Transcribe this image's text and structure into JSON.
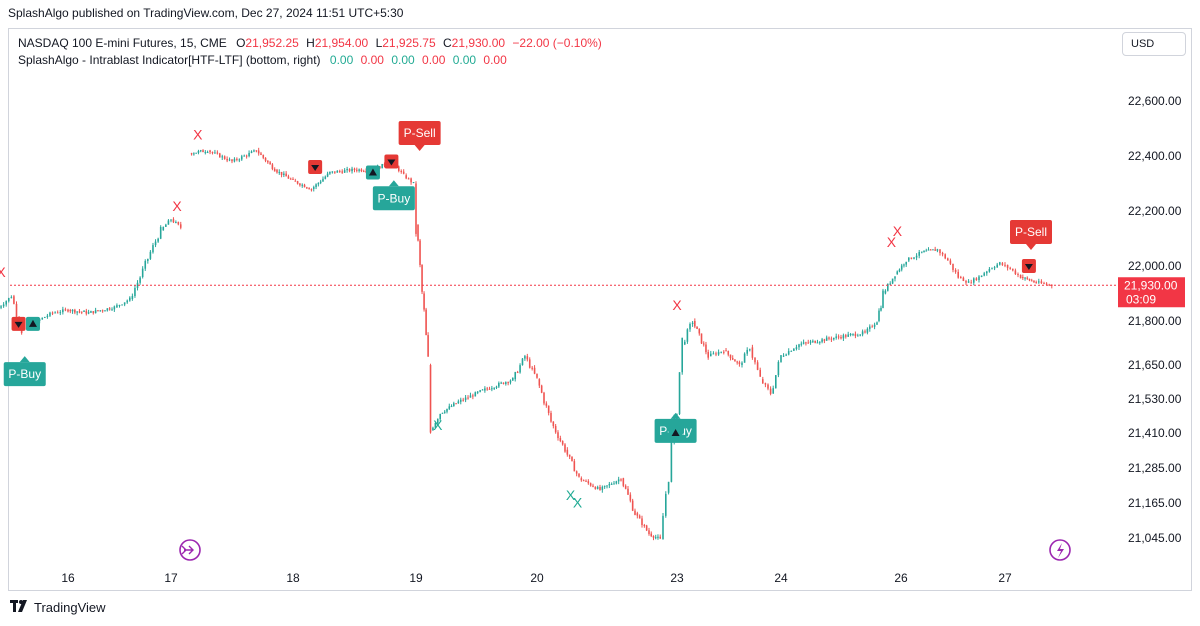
{
  "publisher_line": "SplashAlgo published on TradingView.com, Dec 27, 2024 11:51 UTC+5:30",
  "legend": {
    "symbol": "NASDAQ 100 E-mini Futures, 15, CME",
    "o_label": "O",
    "o_value": "21,952.25",
    "h_label": "H",
    "h_value": "21,954.00",
    "l_label": "L",
    "l_value": "21,925.75",
    "c_label": "C",
    "c_value": "21,930.00",
    "change": "−22.00 (−0.10%)",
    "indicator": "SplashAlgo - Intrablast Indicator[HTF-LTF] (bottom, right)",
    "indicator_values": [
      "0.00",
      "0.00",
      "0.00",
      "0.00",
      "0.00",
      "0.00"
    ]
  },
  "currency_button": "USD",
  "price_tag": {
    "price": "21,930.00",
    "countdown": "03:09"
  },
  "footer": {
    "brand": "TradingView"
  },
  "colors": {
    "up": "#26a69a",
    "down": "#ef5350",
    "sell": "#e53935",
    "buy": "#26a69a",
    "x_red": "#f23645",
    "x_green": "#22ab94"
  },
  "chart_data": {
    "type": "candlestick",
    "y_ticks": [
      {
        "label": "22,600.00",
        "value": 22600
      },
      {
        "label": "22,400.00",
        "value": 22400
      },
      {
        "label": "22,200.00",
        "value": 22200
      },
      {
        "label": "22,000.00",
        "value": 22000
      },
      {
        "label": "21,800.00",
        "value": 21800
      },
      {
        "label": "21,650.00",
        "value": 21650
      },
      {
        "label": "21,530.00",
        "value": 21530
      },
      {
        "label": "21,410.00",
        "value": 21410
      },
      {
        "label": "21,285.00",
        "value": 21285
      },
      {
        "label": "21,165.00",
        "value": 21165
      },
      {
        "label": "21,045.00",
        "value": 21045
      }
    ],
    "x_ticks": [
      {
        "label": "16",
        "t": 16
      },
      {
        "label": "17",
        "t": 17
      },
      {
        "label": "18",
        "t": 18
      },
      {
        "label": "19",
        "t": 19
      },
      {
        "label": "20",
        "t": 20
      },
      {
        "label": "23",
        "t": 21
      },
      {
        "label": "24",
        "t": 22
      },
      {
        "label": "26",
        "t": 23
      },
      {
        "label": "27",
        "t": 24
      }
    ],
    "last_price": 21930,
    "price_path": [
      [
        15.3,
        21840
      ],
      [
        15.45,
        21890
      ],
      [
        15.55,
        21770
      ],
      [
        15.7,
        21800
      ],
      [
        15.85,
        21830
      ],
      [
        16.0,
        21840
      ],
      [
        16.2,
        21830
      ],
      [
        16.45,
        21850
      ],
      [
        16.6,
        21880
      ],
      [
        16.7,
        21960
      ],
      [
        16.8,
        22050
      ],
      [
        16.9,
        22130
      ],
      [
        17.0,
        22170
      ],
      [
        17.08,
        22140
      ],
      [
        17.15,
        22410
      ],
      [
        17.3,
        22420
      ],
      [
        17.5,
        22380
      ],
      [
        17.7,
        22420
      ],
      [
        17.85,
        22350
      ],
      [
        18.0,
        22310
      ],
      [
        18.15,
        22280
      ],
      [
        18.3,
        22340
      ],
      [
        18.5,
        22350
      ],
      [
        18.65,
        22350
      ],
      [
        18.8,
        22380
      ],
      [
        18.9,
        22330
      ],
      [
        18.98,
        22300
      ],
      [
        19.0,
        22150
      ],
      [
        19.05,
        21900
      ],
      [
        19.1,
        21650
      ],
      [
        19.12,
        21420
      ],
      [
        19.2,
        21480
      ],
      [
        19.35,
        21520
      ],
      [
        19.55,
        21560
      ],
      [
        19.8,
        21600
      ],
      [
        19.9,
        21680
      ],
      [
        20.0,
        21600
      ],
      [
        20.1,
        21450
      ],
      [
        20.2,
        21350
      ],
      [
        20.3,
        21250
      ],
      [
        20.45,
        21210
      ],
      [
        20.6,
        21250
      ],
      [
        20.7,
        21130
      ],
      [
        20.8,
        21060
      ],
      [
        20.88,
        21040
      ],
      [
        20.92,
        21200
      ],
      [
        20.98,
        21430
      ],
      [
        21.05,
        21720
      ],
      [
        21.15,
        21800
      ],
      [
        21.3,
        21680
      ],
      [
        21.45,
        21700
      ],
      [
        21.6,
        21650
      ],
      [
        21.7,
        21710
      ],
      [
        21.8,
        21600
      ],
      [
        21.9,
        21550
      ],
      [
        22.0,
        21680
      ],
      [
        22.15,
        21720
      ],
      [
        22.4,
        21740
      ],
      [
        22.7,
        21760
      ],
      [
        22.8,
        21800
      ],
      [
        22.85,
        21900
      ],
      [
        22.95,
        21970
      ],
      [
        23.05,
        22020
      ],
      [
        23.2,
        22050
      ],
      [
        23.35,
        22060
      ],
      [
        23.45,
        22020
      ],
      [
        23.55,
        21960
      ],
      [
        23.65,
        21940
      ],
      [
        23.75,
        21960
      ],
      [
        23.85,
        21990
      ],
      [
        23.95,
        22010
      ],
      [
        24.05,
        21990
      ],
      [
        24.15,
        21960
      ],
      [
        24.3,
        21940
      ],
      [
        24.45,
        21930
      ]
    ],
    "signals": [
      {
        "type": "x_marker",
        "label": "X",
        "t": 15.35,
        "price": 21960,
        "color": "red"
      },
      {
        "type": "x_marker",
        "label": "X",
        "t": 17.05,
        "price": 22200,
        "color": "red"
      },
      {
        "type": "x_marker",
        "label": "X",
        "t": 17.22,
        "price": 22460,
        "color": "red"
      },
      {
        "type": "x_marker",
        "label": "X",
        "t": 19.18,
        "price": 21420,
        "color": "green"
      },
      {
        "type": "x_marker",
        "label": "X",
        "t": 20.24,
        "price": 21175,
        "color": "green"
      },
      {
        "type": "x_marker",
        "label": "X",
        "t": 20.29,
        "price": 21150,
        "color": "green"
      },
      {
        "type": "x_marker",
        "label": "X",
        "t": 21.0,
        "price": 21840,
        "color": "red"
      },
      {
        "type": "x_marker",
        "label": "X",
        "t": 22.92,
        "price": 22070,
        "color": "red"
      },
      {
        "type": "x_marker",
        "label": "X",
        "t": 22.97,
        "price": 22110,
        "color": "red"
      },
      {
        "type": "label",
        "label": "P-Buy",
        "t": 15.58,
        "price": 21660,
        "color": "buy"
      },
      {
        "type": "label",
        "label": "P-Sell",
        "t": 19.03,
        "price": 22440,
        "color": "sell"
      },
      {
        "type": "label",
        "label": "P-Buy",
        "t": 18.82,
        "price": 22290,
        "color": "buy"
      },
      {
        "type": "label",
        "label": "P-Buy",
        "t": 20.99,
        "price": 21460,
        "color": "buy"
      },
      {
        "type": "label",
        "label": "P-Sell",
        "t": 24.25,
        "price": 22080,
        "color": "sell"
      },
      {
        "type": "arrow",
        "dir": "down",
        "t": 15.52,
        "price": 21790,
        "color": "sell"
      },
      {
        "type": "arrow",
        "dir": "up",
        "t": 15.66,
        "price": 21790,
        "color": "buy"
      },
      {
        "type": "arrow",
        "dir": "down",
        "t": 18.18,
        "price": 22360,
        "color": "sell"
      },
      {
        "type": "arrow",
        "dir": "up",
        "t": 18.65,
        "price": 22340,
        "color": "buy"
      },
      {
        "type": "arrow",
        "dir": "down",
        "t": 18.8,
        "price": 22380,
        "color": "sell"
      },
      {
        "type": "arrow",
        "dir": "down",
        "t": 24.23,
        "price": 22000,
        "color": "sell"
      },
      {
        "type": "arrow",
        "dir": "up",
        "t": 20.99,
        "price": 21410,
        "color": "buy"
      }
    ]
  }
}
